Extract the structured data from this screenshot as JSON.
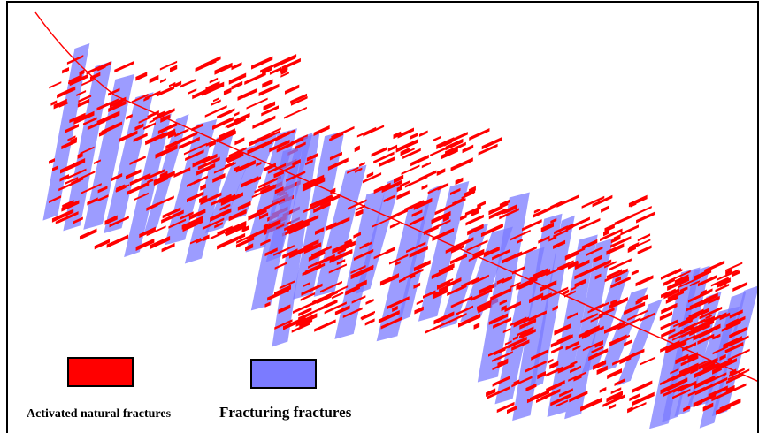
{
  "legend": {
    "items": [
      {
        "label": "Activated natural fractures",
        "color": "#ff0000"
      },
      {
        "label": "Fracturing fractures",
        "color": "#7b7bff"
      }
    ]
  }
}
